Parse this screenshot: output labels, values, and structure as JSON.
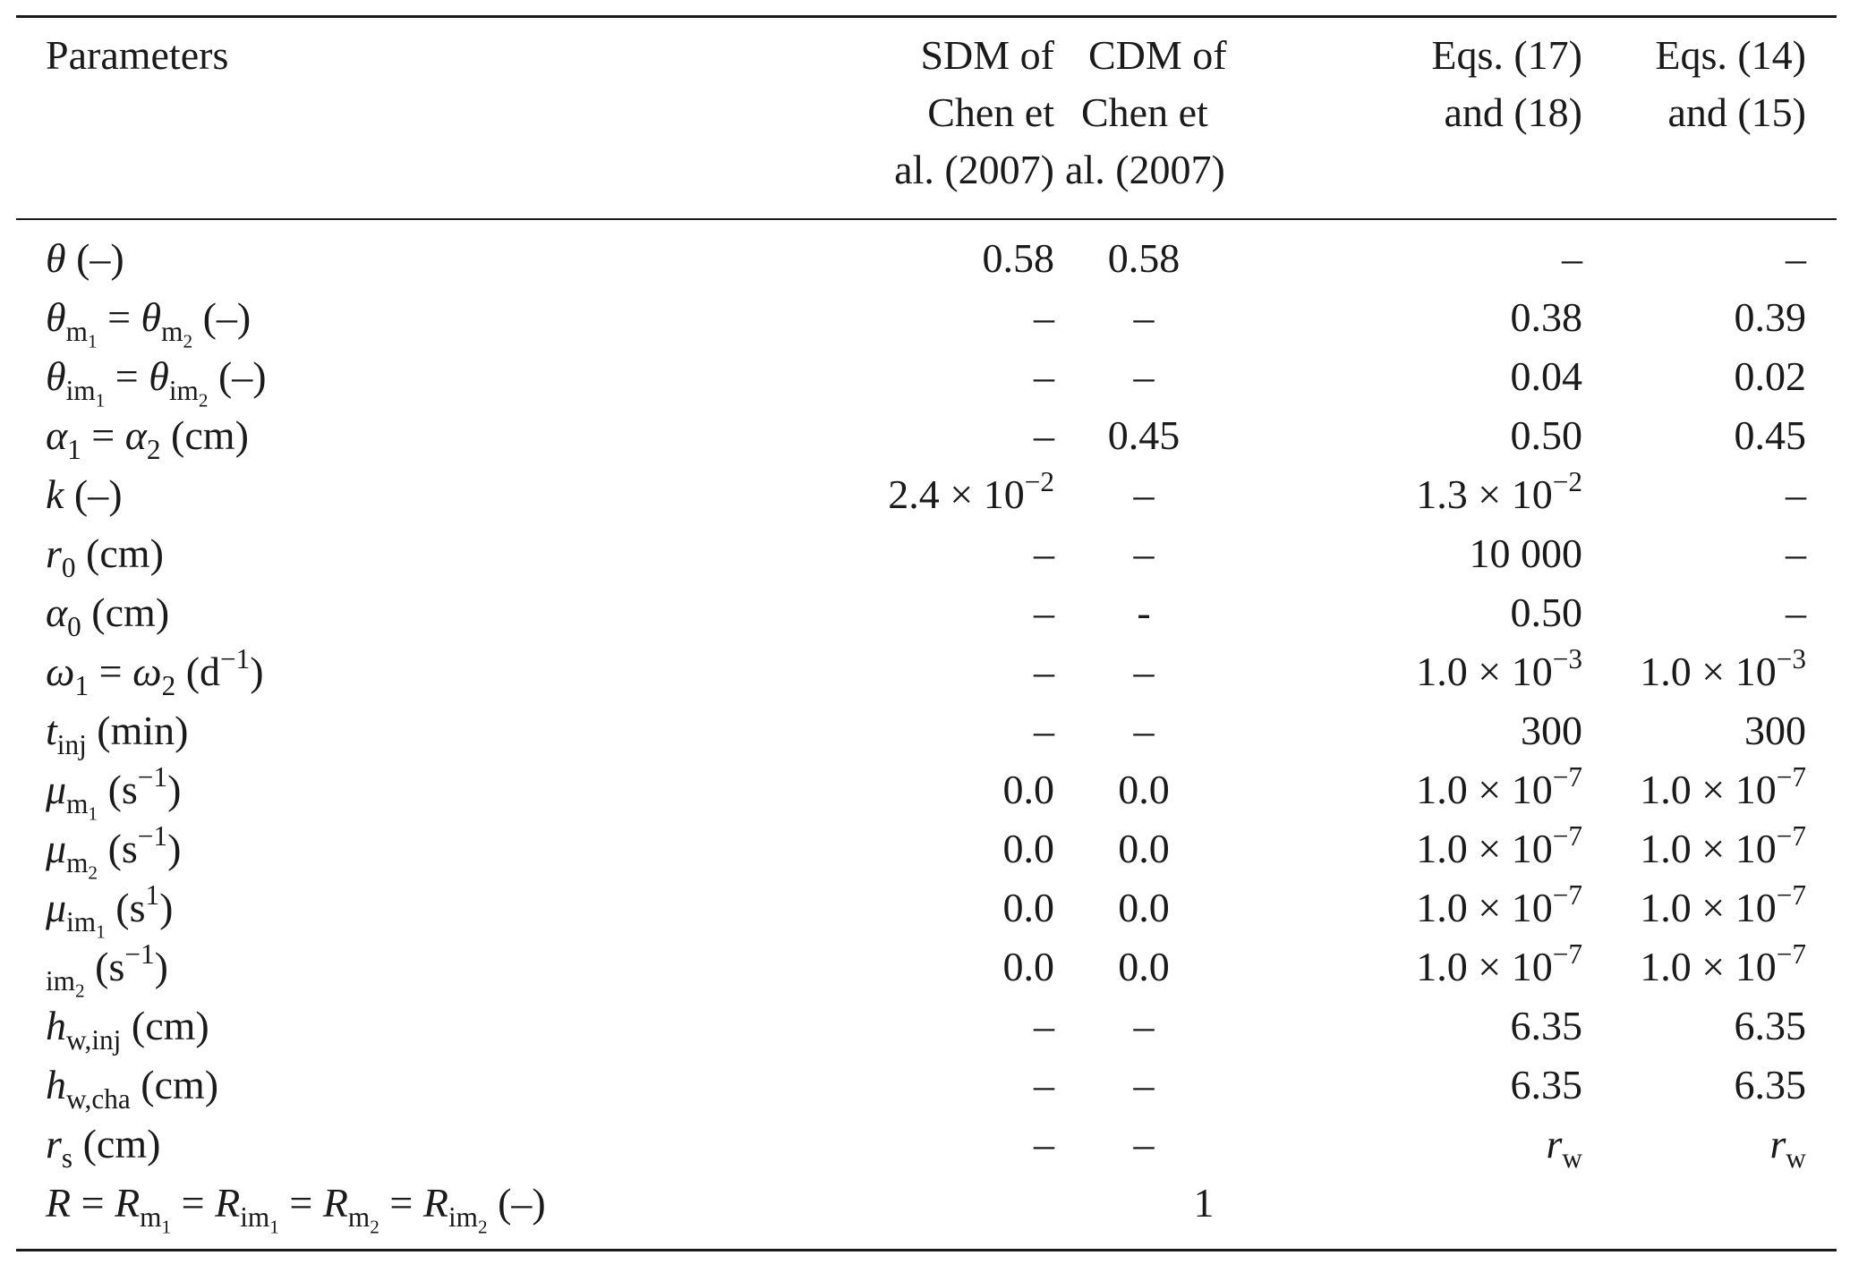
{
  "columns": {
    "param": "Parameters",
    "sdm": [
      "SDM of",
      "Chen et",
      "al. (2007)"
    ],
    "cdm": [
      "CDM of",
      "Chen et",
      "al. (2007)"
    ],
    "eq1718": [
      "Eqs. (17)",
      "and (18)"
    ],
    "eq1415": [
      "Eqs. (14)",
      "and (15)"
    ]
  },
  "rows": [
    {
      "label": "θ (–)",
      "sdm": "0.58",
      "cdm": "0.58",
      "eq1718": "–",
      "eq1415": "–"
    },
    {
      "label": "θm1 = θm2 (–)",
      "sdm": "–",
      "cdm": "–",
      "eq1718": "0.38",
      "eq1415": "0.39"
    },
    {
      "label": "θim1 = θim2 (–)",
      "sdm": "–",
      "cdm": "–",
      "eq1718": "0.04",
      "eq1415": "0.02"
    },
    {
      "label": "α1 = α2 (cm)",
      "sdm": "–",
      "cdm": "0.45",
      "eq1718": "0.50",
      "eq1415": "0.45"
    },
    {
      "label": "k (–)",
      "sdm": "2.4 × 10^−2",
      "cdm": "–",
      "eq1718": "1.3 × 10^−2",
      "eq1415": "–"
    },
    {
      "label": "r0 (cm)",
      "sdm": "–",
      "cdm": "–",
      "eq1718": "10 000",
      "eq1415": "–"
    },
    {
      "label": "α0 (cm)",
      "sdm": "–",
      "cdm": "-",
      "eq1718": "0.50",
      "eq1415": "–"
    },
    {
      "label": "ω1 = ω2 (d^−1)",
      "sdm": "–",
      "cdm": "–",
      "eq1718": "1.0 × 10^−3",
      "eq1415": "1.0 × 10^−3"
    },
    {
      "label": "tinj (min)",
      "sdm": "–",
      "cdm": "–",
      "eq1718": "300",
      "eq1415": "300"
    },
    {
      "label": "μm1 (s^−1)",
      "sdm": "0.0",
      "cdm": "0.0",
      "eq1718": "1.0 × 10^−7",
      "eq1415": "1.0 × 10^−7"
    },
    {
      "label": "μm2 (s^−1)",
      "sdm": "0.0",
      "cdm": "0.0",
      "eq1718": "1.0 × 10^−7",
      "eq1415": "1.0 × 10^−7"
    },
    {
      "label": "μim1 (s^1)",
      "sdm": "0.0",
      "cdm": "0.0",
      "eq1718": "1.0 × 10^−7",
      "eq1415": "1.0 × 10^−7"
    },
    {
      "label": "im2 (s^−1)",
      "sdm": "0.0",
      "cdm": "0.0",
      "eq1718": "1.0 × 10^−7",
      "eq1415": "1.0 × 10^−7"
    },
    {
      "label": "hw,inj (cm)",
      "sdm": "–",
      "cdm": "–",
      "eq1718": "6.35",
      "eq1415": "6.35"
    },
    {
      "label": "hw,cha (cm)",
      "sdm": "–",
      "cdm": "–",
      "eq1718": "6.35",
      "eq1415": "6.35"
    },
    {
      "label": "rs (cm)",
      "sdm": "–",
      "cdm": "–",
      "eq1718": "rw",
      "eq1415": "rw"
    }
  ],
  "last_row": {
    "label": "R = Rm1 = Rim1 = Rm2 = Rim2 (–)",
    "value": "1"
  },
  "math": {
    "theta": "θ",
    "alpha": "α",
    "omega": "ω",
    "mu": "μ",
    "eq": " = ",
    "dash": "(–)",
    "times10": " × 10",
    "sub_m": "m",
    "sub_im": "im",
    "sub_inj": "inj",
    "sub_winj": "w,inj",
    "sub_wcha": "w,cha",
    "sub_s": "s",
    "sub_w": "w",
    "n1": "1",
    "n2": "2",
    "n0": "0",
    "exp_m1": "−1",
    "exp_1": "1",
    "exp_m2": "−2",
    "exp_m3": "−3",
    "exp_m7": "−7",
    "k": "k",
    "r": "r",
    "t": "t",
    "h": "h",
    "R": "R",
    "unit_cm": "(cm)",
    "unit_min": "(min)",
    "unit_d_open": "(d",
    "unit_s_open": "(s",
    "close": ")",
    "coef_24": "2.4",
    "coef_13": "1.3",
    "coef_10": "1.0"
  }
}
